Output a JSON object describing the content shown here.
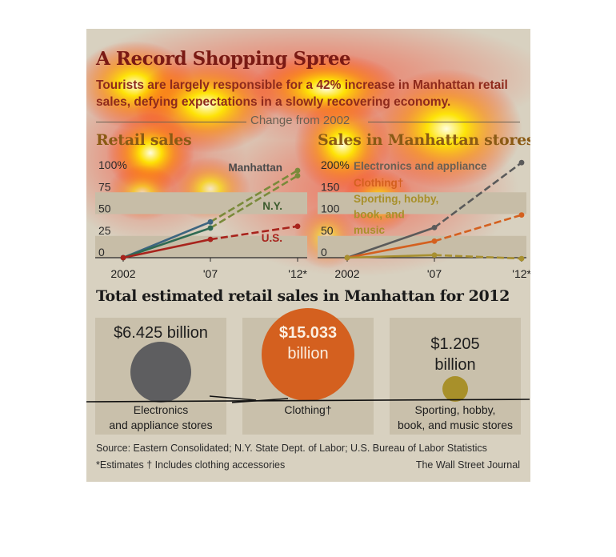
{
  "title": "A Record Shopping Spree",
  "subtitle": "Tourists are largely responsible for a 42% increase in Manhattan retail sales, defying expectations in a slowly recovering economy.",
  "change_label": "Change from 2002",
  "chart_data": [
    {
      "type": "line",
      "title": "Retail sales",
      "x": [
        "2002",
        "'07",
        "'12*"
      ],
      "yticks": [
        "100%",
        "75",
        "50",
        "25",
        "0"
      ],
      "ylim": [
        0,
        100
      ],
      "series": [
        {
          "name": "Manhattan",
          "values": [
            0,
            41,
            100
          ],
          "color": "#3d6580",
          "forecast_color": "#7a8a3a"
        },
        {
          "name": "N.Y.",
          "values": [
            0,
            34,
            94
          ],
          "color": "#2f6a52",
          "forecast_color": "#7a8a3a"
        },
        {
          "name": "U.S.",
          "values": [
            0,
            21,
            36
          ],
          "color": "#a8231c",
          "forecast_color": "#a8231c"
        }
      ]
    },
    {
      "type": "line",
      "title": "Sales in Manhattan stores",
      "x": [
        "2002",
        "'07",
        "'12*"
      ],
      "yticks": [
        "200%",
        "150",
        "100",
        "50",
        "0"
      ],
      "ylim": [
        0,
        200
      ],
      "series": [
        {
          "name": "Electronics and appliance",
          "values": [
            0,
            69,
            218
          ],
          "color": "#5a5a5a"
        },
        {
          "name": "Clothing†",
          "values": [
            0,
            38,
            98
          ],
          "color": "#d4601f"
        },
        {
          "name": "Sporting, hobby, book, and music",
          "values": [
            0,
            6,
            -2
          ],
          "color": "#a89030"
        }
      ]
    }
  ],
  "totals": {
    "title": "Total estimated retail sales in Manhattan for 2012",
    "items": [
      {
        "value": "$6.425 billion",
        "label_line1": "Electronics",
        "label_line2": "and appliance stores",
        "color": "#5e5e60"
      },
      {
        "value_line1": "$15.033",
        "value_line2": "billion",
        "label_line1": "Clothing†",
        "color": "#d4601f"
      },
      {
        "value_line1": "$1.205",
        "value_line2": "billion",
        "label_line1": "Sporting, hobby,",
        "label_line2": "book, and music stores",
        "color": "#a8902a"
      }
    ]
  },
  "source": "Source: Eastern Consolidated; N.Y. State Dept. of Labor; U.S. Bureau of Labor Statistics",
  "notes": "*Estimates   † Includes clothing accessories",
  "credit": "The Wall Street Journal"
}
